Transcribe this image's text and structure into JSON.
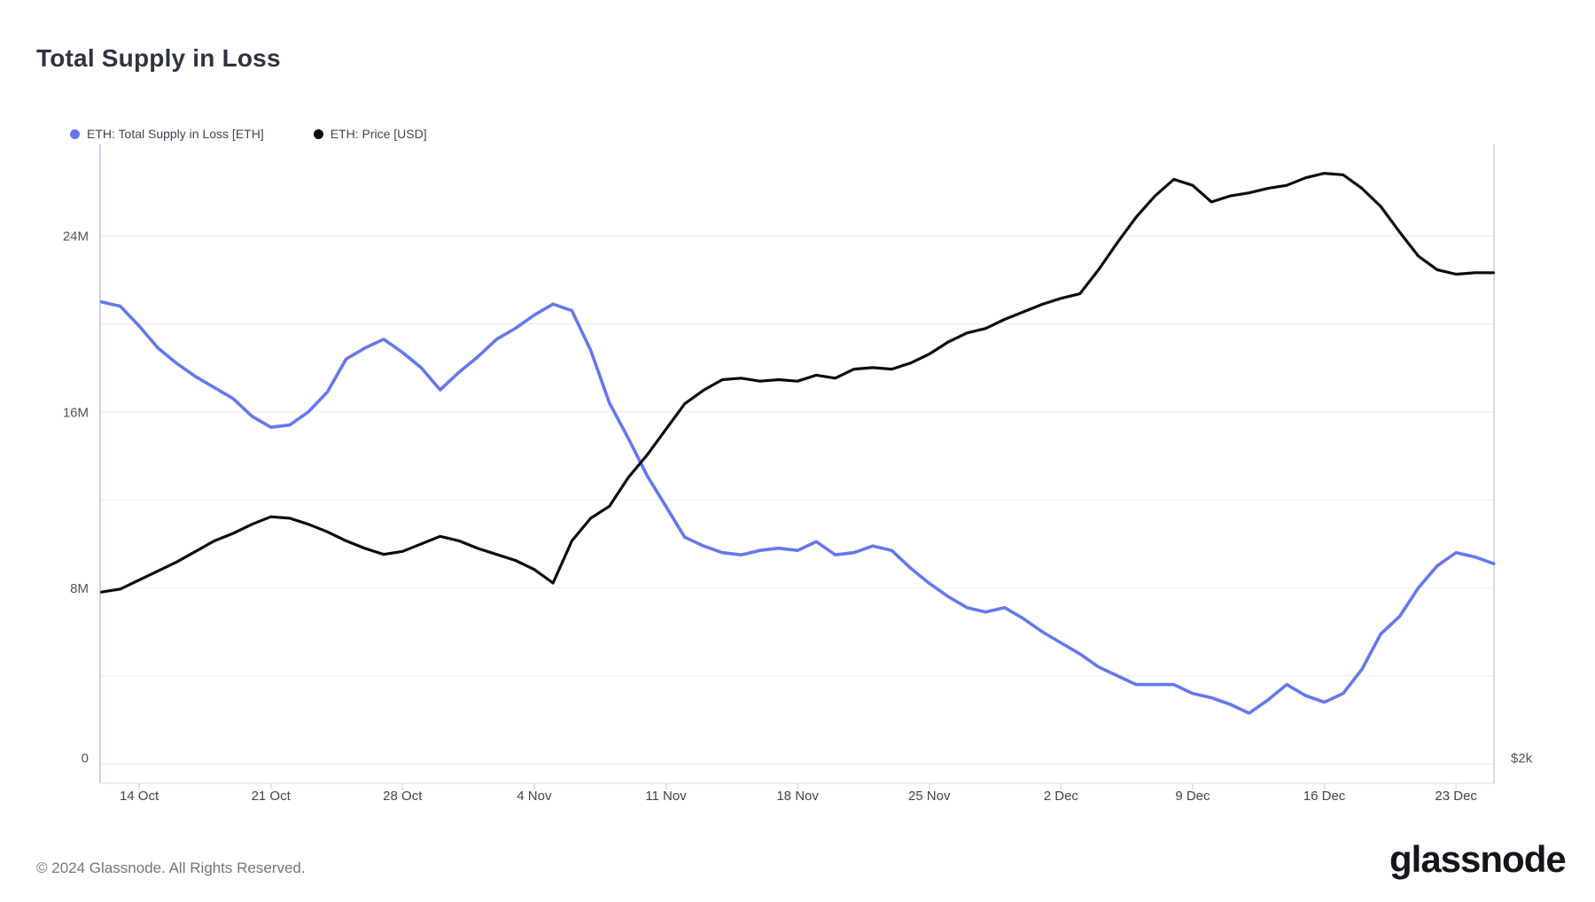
{
  "page": {
    "title": "Total Supply in Loss",
    "footer_copyright": "© 2024 Glassnode. All Rights Reserved.",
    "brand_wordmark": "glassnode"
  },
  "legend": {
    "items": [
      {
        "label": "ETH: Total Supply in Loss [ETH]",
        "color": "#6577ef"
      },
      {
        "label": "ETH: Price [USD]",
        "color": "#0b0b0f"
      }
    ]
  },
  "chart_data": {
    "type": "line",
    "title": "Total Supply in Loss",
    "x_start_date": "2024-10-12",
    "x_end_date": "2024-12-25",
    "dates": [
      "2024-10-12",
      "2024-10-13",
      "2024-10-14",
      "2024-10-15",
      "2024-10-16",
      "2024-10-17",
      "2024-10-18",
      "2024-10-19",
      "2024-10-20",
      "2024-10-21",
      "2024-10-22",
      "2024-10-23",
      "2024-10-24",
      "2024-10-25",
      "2024-10-26",
      "2024-10-27",
      "2024-10-28",
      "2024-10-29",
      "2024-10-30",
      "2024-10-31",
      "2024-11-01",
      "2024-11-02",
      "2024-11-03",
      "2024-11-04",
      "2024-11-05",
      "2024-11-06",
      "2024-11-07",
      "2024-11-08",
      "2024-11-09",
      "2024-11-10",
      "2024-11-11",
      "2024-11-12",
      "2024-11-13",
      "2024-11-14",
      "2024-11-15",
      "2024-11-16",
      "2024-11-17",
      "2024-11-18",
      "2024-11-19",
      "2024-11-20",
      "2024-11-21",
      "2024-11-22",
      "2024-11-23",
      "2024-11-24",
      "2024-11-25",
      "2024-11-26",
      "2024-11-27",
      "2024-11-28",
      "2024-11-29",
      "2024-11-30",
      "2024-12-01",
      "2024-12-02",
      "2024-12-03",
      "2024-12-04",
      "2024-12-05",
      "2024-12-06",
      "2024-12-07",
      "2024-12-08",
      "2024-12-09",
      "2024-12-10",
      "2024-12-11",
      "2024-12-12",
      "2024-12-13",
      "2024-12-14",
      "2024-12-15",
      "2024-12-16",
      "2024-12-17",
      "2024-12-18",
      "2024-12-19",
      "2024-12-20",
      "2024-12-21",
      "2024-12-22",
      "2024-12-23",
      "2024-12-24",
      "2024-12-25"
    ],
    "series": [
      {
        "name": "ETH: Total Supply in Loss [ETH]",
        "axis": "left",
        "unit": "M ETH",
        "color": "#6577ef",
        "values": [
          21.0,
          20.8,
          19.9,
          18.9,
          18.2,
          17.6,
          17.1,
          16.6,
          15.8,
          15.3,
          15.4,
          16.0,
          16.9,
          18.4,
          18.9,
          19.3,
          18.7,
          18.0,
          17.0,
          17.8,
          18.5,
          19.3,
          19.8,
          20.4,
          20.9,
          20.6,
          18.8,
          16.4,
          14.8,
          13.1,
          11.7,
          10.3,
          9.9,
          9.6,
          9.5,
          9.7,
          9.8,
          9.7,
          10.1,
          9.5,
          9.6,
          9.9,
          9.7,
          8.9,
          8.2,
          7.6,
          7.1,
          6.9,
          7.1,
          6.6,
          6.0,
          5.5,
          5.0,
          4.4,
          4.0,
          3.6,
          3.6,
          3.6,
          3.2,
          3.0,
          2.7,
          2.3,
          2.9,
          3.6,
          3.1,
          2.8,
          3.2,
          4.3,
          5.9,
          6.7,
          8.0,
          9.0,
          9.6,
          9.4,
          9.1
        ]
      },
      {
        "name": "ETH: Price [USD]",
        "axis": "right",
        "unit": "USD",
        "color": "#0b0b0f",
        "values": [
          2570,
          2580,
          2610,
          2640,
          2670,
          2705,
          2740,
          2765,
          2795,
          2820,
          2815,
          2795,
          2770,
          2740,
          2715,
          2695,
          2705,
          2730,
          2755,
          2740,
          2715,
          2695,
          2675,
          2645,
          2600,
          2740,
          2815,
          2855,
          2950,
          3025,
          3110,
          3195,
          3240,
          3275,
          3280,
          3270,
          3275,
          3270,
          3290,
          3280,
          3310,
          3315,
          3310,
          3330,
          3360,
          3400,
          3430,
          3445,
          3475,
          3500,
          3525,
          3545,
          3560,
          3640,
          3730,
          3815,
          3885,
          3940,
          3920,
          3865,
          3885,
          3895,
          3910,
          3920,
          3945,
          3960,
          3955,
          3910,
          3850,
          3765,
          3685,
          3640,
          3625,
          3630,
          3630
        ]
      }
    ],
    "y_left_axis": {
      "unit": "ETH (millions)",
      "range": [
        0,
        28.2
      ],
      "tick_labels": [
        {
          "label": "24M",
          "value": 24
        },
        {
          "label": "16M",
          "value": 16
        },
        {
          "label": "8M",
          "value": 8
        },
        {
          "label": "0",
          "value": 0
        }
      ],
      "gridline_values": [
        0,
        4,
        8,
        12,
        16,
        20,
        24
      ]
    },
    "y_right_axis": {
      "unit": "USD",
      "range": [
        2000,
        4060
      ],
      "tick_labels": [
        {
          "label": "$2k",
          "value": 2000
        }
      ]
    },
    "x_axis": {
      "tick_labels": [
        {
          "label": "14 Oct",
          "day_index": 2
        },
        {
          "label": "21 Oct",
          "day_index": 9
        },
        {
          "label": "28 Oct",
          "day_index": 16
        },
        {
          "label": "4 Nov",
          "day_index": 23
        },
        {
          "label": "11 Nov",
          "day_index": 30
        },
        {
          "label": "18 Nov",
          "day_index": 37
        },
        {
          "label": "25 Nov",
          "day_index": 44
        },
        {
          "label": "2 Dec",
          "day_index": 51
        },
        {
          "label": "9 Dec",
          "day_index": 58
        },
        {
          "label": "16 Dec",
          "day_index": 65
        },
        {
          "label": "23 Dec",
          "day_index": 72
        }
      ]
    },
    "legend_position": "top-left",
    "grid": "horizontal-only"
  }
}
